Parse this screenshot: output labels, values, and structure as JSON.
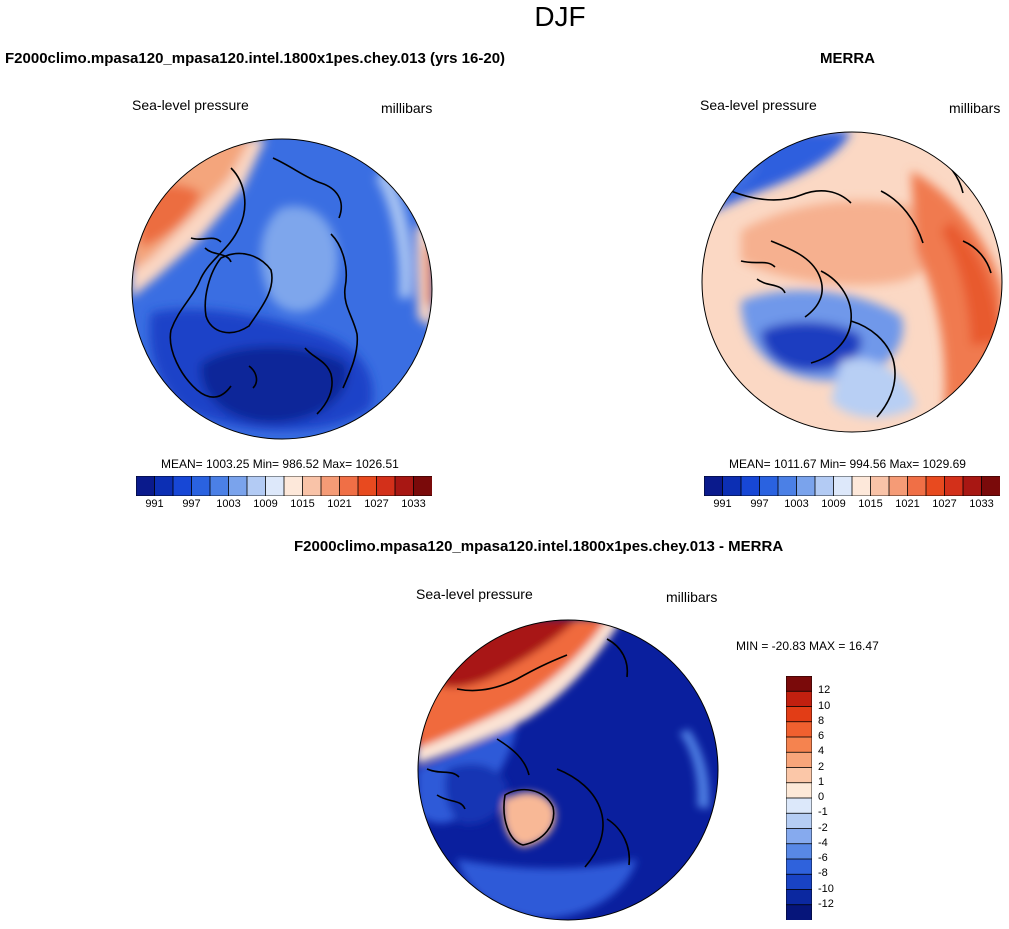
{
  "figure": {
    "title": "DJF"
  },
  "panels": [
    {
      "title": "F2000climo.mpasa120_mpasa120.intel.1800x1pes.chey.013 (yrs 16-20)",
      "left_label": "Sea-level pressure",
      "right_label": "millibars",
      "stats": "MEAN= 1003.25  Min= 986.52  Max= 1026.51",
      "colorbar_ticks": [
        "991",
        "997",
        "1003",
        "1009",
        "1015",
        "1021",
        "1027",
        "1033"
      ],
      "colorbar_colors": [
        "#0a1a8c",
        "#0c2fb4",
        "#1747d6",
        "#2a62e0",
        "#4b80e6",
        "#7aa3ec",
        "#b3cbf4",
        "#dde8fa",
        "#fde8da",
        "#f9c3a8",
        "#f59b76",
        "#f06f46",
        "#e84a1f",
        "#d3301a",
        "#a81713",
        "#7a0a0a"
      ]
    },
    {
      "title": "MERRA",
      "left_label": "Sea-level pressure",
      "right_label": "millibars",
      "stats": "MEAN= 1011.67  Min= 994.56  Max= 1029.69",
      "colorbar_ticks": [
        "991",
        "997",
        "1003",
        "1009",
        "1015",
        "1021",
        "1027",
        "1033"
      ],
      "colorbar_colors": [
        "#0a1a8c",
        "#0c2fb4",
        "#1747d6",
        "#2a62e0",
        "#4b80e6",
        "#7aa3ec",
        "#b3cbf4",
        "#dde8fa",
        "#fde8da",
        "#f9c3a8",
        "#f59b76",
        "#f06f46",
        "#e84a1f",
        "#d3301a",
        "#a81713",
        "#7a0a0a"
      ]
    },
    {
      "title": "F2000climo.mpasa120_mpasa120.intel.1800x1pes.chey.013 - MERRA",
      "left_label": "Sea-level pressure",
      "right_label": "millibars",
      "stats": "MIN = -20.83 MAX =  16.47",
      "colorbar_ticks": [
        "12",
        "10",
        "8",
        "6",
        "4",
        "2",
        "1",
        "0",
        "-1",
        "-2",
        "-4",
        "-6",
        "-8",
        "-10",
        "-12"
      ],
      "colorbar_colors": [
        "#7a0a0a",
        "#c2200f",
        "#e23d16",
        "#f0602f",
        "#f5834f",
        "#f8a57a",
        "#fbc7a8",
        "#fde9d8",
        "#dce8fa",
        "#b5cdf4",
        "#86aaee",
        "#5888e6",
        "#2f62dc",
        "#1943c4",
        "#0b28a0",
        "#06157a"
      ]
    }
  ],
  "maps": [
    {
      "name": "model",
      "background": "#3a6ee2",
      "regions": [
        {
          "color": "#f4a57c"
        },
        {
          "color": "#fbd7c3"
        },
        {
          "color": "#ec6d40"
        },
        {
          "color": "#7ea6ec"
        },
        {
          "color": "#1b43c8"
        },
        {
          "color": "#0c2799"
        },
        {
          "color": "#a9c4f2"
        },
        {
          "color": "#fbd7c3"
        },
        {
          "color": "#f08050"
        }
      ]
    },
    {
      "name": "merra",
      "background": "#fbd8c4",
      "regions": [
        {
          "color": "#f6b08f"
        },
        {
          "color": "#f07a4f"
        },
        {
          "color": "#e85a2e"
        },
        {
          "color": "#2f5fde"
        },
        {
          "color": "#6f98ea"
        },
        {
          "color": "#1a3cc0"
        },
        {
          "color": "#b8cff4"
        },
        {
          "color": "#3f70e2"
        }
      ]
    },
    {
      "name": "difference",
      "background": "#0a1f9e",
      "regions": [
        {
          "color": "#f06a3c"
        },
        {
          "color": "#a81515"
        },
        {
          "color": "#fbe3d4"
        },
        {
          "color": "#2e5ad8"
        },
        {
          "color": "#1435b4"
        },
        {
          "color": "#f8b896"
        },
        {
          "color": "#4b7ae0"
        },
        {
          "color": "#2e5ad8"
        }
      ]
    }
  ]
}
